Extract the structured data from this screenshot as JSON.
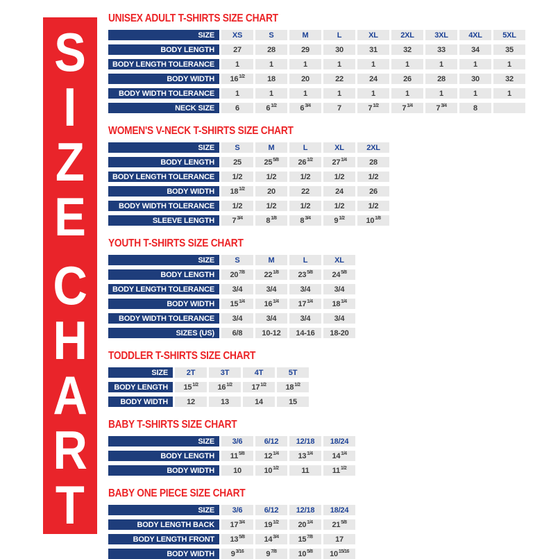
{
  "banner": {
    "text": "SIZE CHART",
    "letters": [
      "S",
      "I",
      "Z",
      "E",
      "C",
      "H",
      "A",
      "R",
      "T"
    ],
    "gap_indices": [
      4
    ],
    "bg_color": "#e9242a",
    "text_color": "#ffffff"
  },
  "colors": {
    "heading_red": "#ec2427",
    "label_navy": "#1e3d7b",
    "column_header_navy": "#1e4397",
    "cell_gray": "#e8e8e8",
    "value_text": "#3e3e3e"
  },
  "tables": [
    {
      "title": "UNISEX ADULT T-SHIRTS SIZE CHART",
      "label_col_width": 160,
      "header": {
        "label": "SIZE",
        "columns": [
          "XS",
          "S",
          "M",
          "L",
          "XL",
          "2XL",
          "3XL",
          "4XL",
          "5XL"
        ]
      },
      "rows": [
        {
          "label": "BODY LENGTH",
          "values": [
            "27",
            "28",
            "29",
            "30",
            "31",
            "32",
            "33",
            "34",
            "35"
          ]
        },
        {
          "label": "BODY LENGTH TOLERANCE",
          "values": [
            "1",
            "1",
            "1",
            "1",
            "1",
            "1",
            "1",
            "1",
            "1"
          ]
        },
        {
          "label": "BODY WIDTH",
          "values": [
            "16{1/2}",
            "18",
            "20",
            "22",
            "24",
            "26",
            "28",
            "30",
            "32"
          ]
        },
        {
          "label": "BODY WIDTH TOLERANCE",
          "values": [
            "1",
            "1",
            "1",
            "1",
            "1",
            "1",
            "1",
            "1",
            "1"
          ]
        },
        {
          "label": "NECK SIZE",
          "values": [
            "6",
            "6{1/2}",
            "6{3/4}",
            "7",
            "7{1/2}",
            "7{1/4}",
            "7{3/4}",
            "8",
            ""
          ]
        }
      ]
    },
    {
      "title": "WOMEN'S V-NECK T-SHIRTS SIZE CHART",
      "label_col_width": 160,
      "header": {
        "label": "SIZE",
        "columns": [
          "S",
          "M",
          "L",
          "XL",
          "2XL"
        ]
      },
      "rows": [
        {
          "label": "BODY LENGTH",
          "values": [
            "25",
            "25{5/8}",
            "26{1/2}",
            "27{1/4}",
            "28"
          ]
        },
        {
          "label": "BODY LENGTH TOLERANCE",
          "values": [
            "1/2",
            "1/2",
            "1/2",
            "1/2",
            "1/2"
          ]
        },
        {
          "label": "BODY WIDTH",
          "values": [
            "18{1/2}",
            "20",
            "22",
            "24",
            "26"
          ]
        },
        {
          "label": "BODY WIDTH TOLERANCE",
          "values": [
            "1/2",
            "1/2",
            "1/2",
            "1/2",
            "1/2"
          ]
        },
        {
          "label": "SLEEVE LENGTH",
          "values": [
            "7{3/4}",
            "8{1/8}",
            "8{3/4}",
            "9{1/2}",
            "10{1/8}"
          ]
        }
      ]
    },
    {
      "title": "YOUTH T-SHIRTS SIZE CHART",
      "label_col_width": 160,
      "header": {
        "label": "SIZE",
        "columns": [
          "S",
          "M",
          "L",
          "XL"
        ]
      },
      "rows": [
        {
          "label": "BODY LENGTH",
          "values": [
            "20{7/8}",
            "22{1/8}",
            "23{5/8}",
            "24{5/8}"
          ]
        },
        {
          "label": "BODY LENGTH TOLERANCE",
          "values": [
            "3/4",
            "3/4",
            "3/4",
            "3/4"
          ]
        },
        {
          "label": "BODY WIDTH",
          "values": [
            "15{1/4}",
            "16{1/4}",
            "17{1/4}",
            "18{1/4}"
          ]
        },
        {
          "label": "BODY WIDTH TOLERANCE",
          "values": [
            "3/4",
            "3/4",
            "3/4",
            "3/4"
          ]
        },
        {
          "label": "SIZES (US)",
          "values": [
            "6/8",
            "10-12",
            "14-16",
            "18-20"
          ]
        }
      ]
    },
    {
      "title": "TODDLER T-SHIRTS SIZE CHART",
      "label_col_width": 93,
      "header": {
        "label": "SIZE",
        "columns": [
          "2T",
          "3T",
          "4T",
          "5T"
        ]
      },
      "rows": [
        {
          "label": "BODY LENGTH",
          "values": [
            "15{1/2}",
            "16{1/2}",
            "17{1/2}",
            "18{1/2}"
          ]
        },
        {
          "label": "BODY WIDTH",
          "values": [
            "12",
            "13",
            "14",
            "15"
          ]
        }
      ]
    },
    {
      "title": "BABY T-SHIRTS SIZE CHART",
      "label_col_width": 160,
      "header": {
        "label": "SIZE",
        "columns": [
          "3/6",
          "6/12",
          "12/18",
          "18/24"
        ]
      },
      "rows": [
        {
          "label": "BODY LENGTH",
          "values": [
            "11{5/8}",
            "12{1/4}",
            "13{1/4}",
            "14{1/4}"
          ]
        },
        {
          "label": "BODY WIDTH",
          "values": [
            "10",
            "10{1/2}",
            "11",
            "11{1/2}"
          ]
        }
      ]
    },
    {
      "title": "BABY ONE PIECE SIZE CHART",
      "label_col_width": 160,
      "header": {
        "label": "SIZE",
        "columns": [
          "3/6",
          "6/12",
          "12/18",
          "18/24"
        ]
      },
      "rows": [
        {
          "label": "BODY LENGTH BACK",
          "values": [
            "17{3/4}",
            "19{1/2}",
            "20{1/4}",
            "21{5/8}"
          ]
        },
        {
          "label": "BODY LENGTH FRONT",
          "values": [
            "13{5/8}",
            "14{3/4}",
            "15{7/8}",
            "17"
          ]
        },
        {
          "label": "BODY WIDTH",
          "values": [
            "9{3/16}",
            "9{7/8}",
            "10{5/8}",
            "10{15/16}"
          ]
        }
      ]
    }
  ]
}
